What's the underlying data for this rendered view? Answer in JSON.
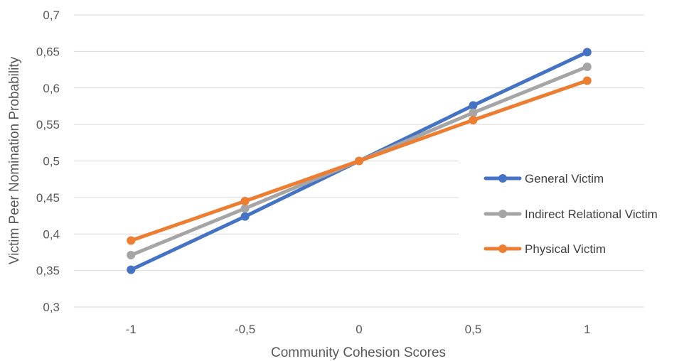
{
  "chart_data": {
    "type": "line",
    "title": "",
    "xlabel": "Community Cohesion Scores",
    "ylabel": "Victim Peer Nomination Probability",
    "categories": [
      "-1",
      "-0,5",
      "0",
      "0,5",
      "1"
    ],
    "x": [
      -1,
      -0.5,
      0,
      0.5,
      1
    ],
    "ylim": [
      0.3,
      0.7
    ],
    "yticks": [
      0.3,
      0.35,
      0.4,
      0.45,
      0.5,
      0.55,
      0.6,
      0.65,
      0.7
    ],
    "ytick_labels": [
      "0,3",
      "0,35",
      "0,4",
      "0,45",
      "0,5",
      "0,55",
      "0,6",
      "0,65",
      "0,7"
    ],
    "grid": "horizontal",
    "legend_position": "right",
    "series": [
      {
        "name": "General Victim",
        "color": "#4472C4",
        "values": [
          0.351,
          0.424,
          0.5,
          0.576,
          0.649
        ]
      },
      {
        "name": "Indirect Relational Victim",
        "color": "#A5A5A5",
        "values": [
          0.371,
          0.435,
          0.5,
          0.566,
          0.629
        ]
      },
      {
        "name": "Physical Victim",
        "color": "#ED7D31",
        "values": [
          0.391,
          0.445,
          0.5,
          0.556,
          0.61
        ]
      }
    ]
  }
}
